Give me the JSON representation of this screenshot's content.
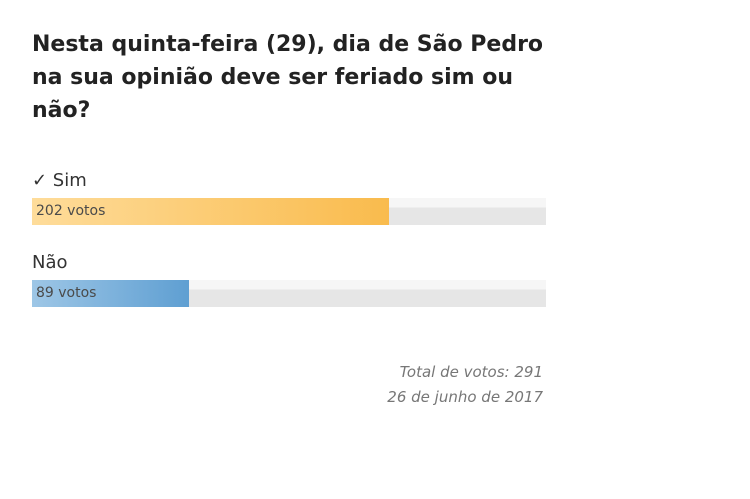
{
  "poll": {
    "question": "Nesta quinta-feira (29), dia de São Pedro na sua opinião deve ser feriado sim ou não?",
    "options": [
      {
        "label": "✓ Sim",
        "votes": 202,
        "votes_label": "202 votos"
      },
      {
        "label": "Não",
        "votes": 89,
        "votes_label": "89 votos"
      }
    ],
    "total_votes": 291,
    "total_label": "Total de votos: 291",
    "date": "26 de junho de 2017"
  }
}
